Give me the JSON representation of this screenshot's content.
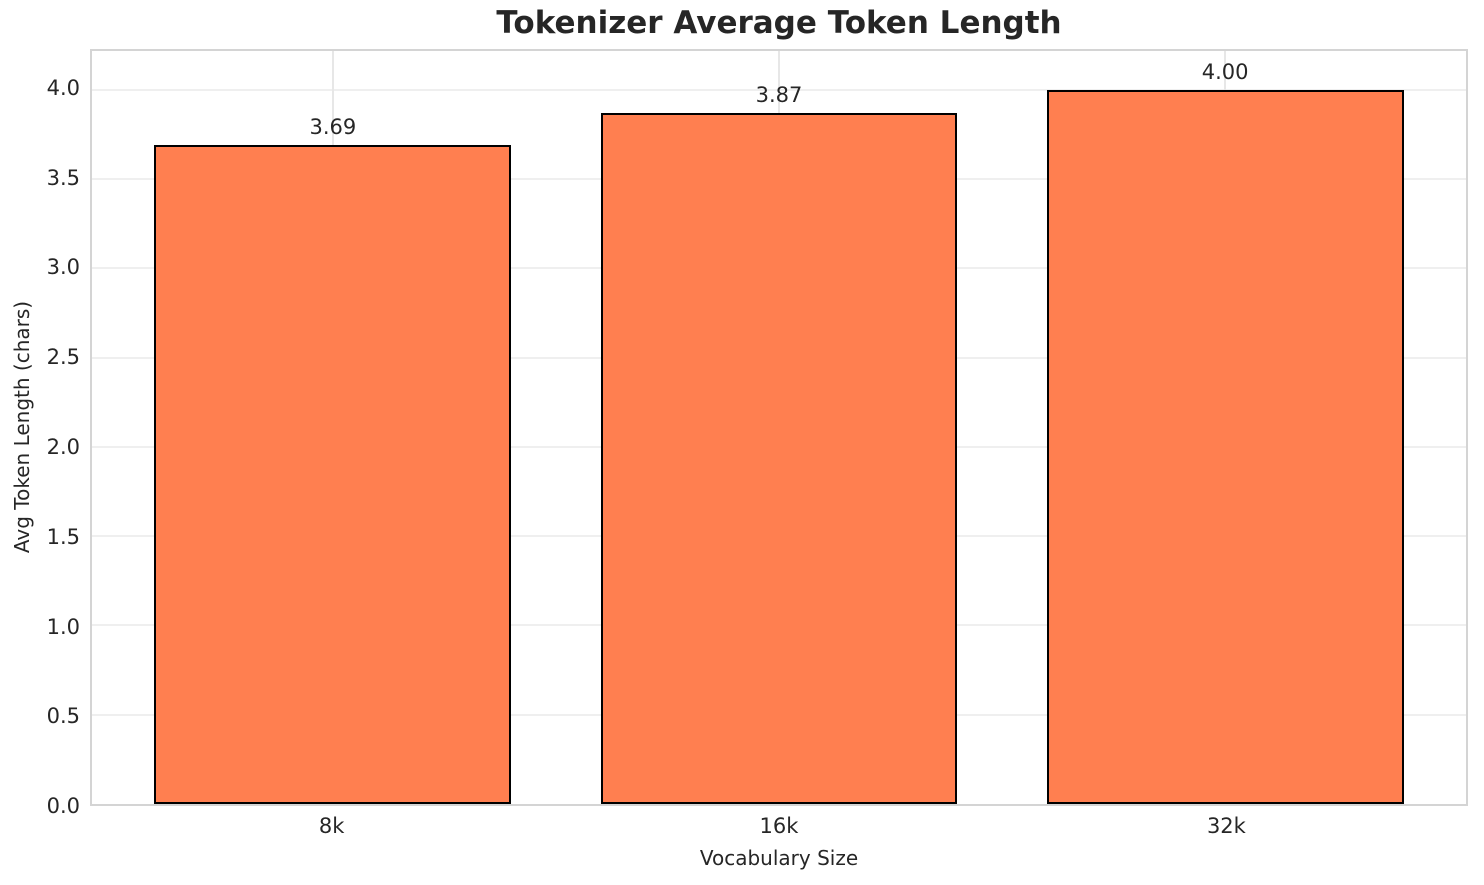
{
  "chart_data": {
    "type": "bar",
    "title": "Tokenizer Average Token Length",
    "xlabel": "Vocabulary Size",
    "ylabel": "Avg Token Length (chars)",
    "categories": [
      "8k",
      "16k",
      "32k"
    ],
    "values": [
      3.69,
      3.87,
      4.0
    ],
    "value_labels": [
      "3.69",
      "3.87",
      "4.00"
    ],
    "yticks": [
      0.0,
      0.5,
      1.0,
      1.5,
      2.0,
      2.5,
      3.0,
      3.5,
      4.0
    ],
    "ytick_labels": [
      "0.0",
      "0.5",
      "1.0",
      "1.5",
      "2.0",
      "2.5",
      "3.0",
      "3.5",
      "4.0"
    ],
    "ylim": [
      0,
      4.217
    ],
    "bar_width_fraction": 0.8,
    "grid": true,
    "legend": "none",
    "bar_color": "#ff7f50",
    "bar_edge_color": "#000000",
    "grid_color": "#efefef",
    "spine_color": "#d4d4d4",
    "text_color": "#262626",
    "background_color": "#ffffff"
  }
}
